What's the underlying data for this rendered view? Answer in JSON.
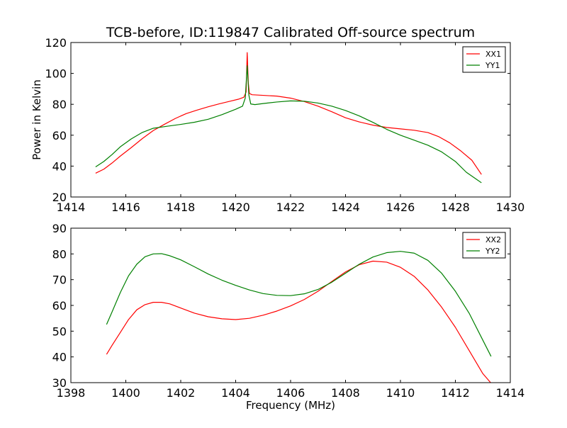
{
  "figure": {
    "title": "TCB-before, ID:119847 Calibrated Off-source spectrum"
  },
  "chart_data": [
    {
      "type": "line",
      "title": "TCB-before, ID:119847 Calibrated Off-source spectrum",
      "xlabel": "",
      "ylabel": "Power in Kelvin",
      "xlim": [
        1414,
        1430
      ],
      "ylim": [
        20,
        120
      ],
      "xticks": [
        1414,
        1416,
        1418,
        1420,
        1422,
        1424,
        1426,
        1428,
        1430
      ],
      "yticks": [
        20,
        40,
        60,
        80,
        100,
        120
      ],
      "grid": false,
      "legend": "top-right",
      "series": [
        {
          "name": "XX1",
          "color": "#ff0000",
          "points": [
            [
              1414.9,
              35.4
            ],
            [
              1415.2,
              38.0
            ],
            [
              1415.5,
              42.0
            ],
            [
              1415.8,
              46.5
            ],
            [
              1416.2,
              52.0
            ],
            [
              1416.6,
              57.8
            ],
            [
              1417.0,
              63.0
            ],
            [
              1417.4,
              67.0
            ],
            [
              1417.8,
              70.8
            ],
            [
              1418.2,
              74.0
            ],
            [
              1418.6,
              76.3
            ],
            [
              1419.0,
              78.4
            ],
            [
              1419.4,
              80.3
            ],
            [
              1419.8,
              82.0
            ],
            [
              1420.1,
              83.3
            ],
            [
              1420.3,
              84.6
            ],
            [
              1420.38,
              88.0
            ],
            [
              1420.42,
              113.5
            ],
            [
              1420.46,
              94.0
            ],
            [
              1420.5,
              87.0
            ],
            [
              1420.6,
              86.2
            ],
            [
              1421.0,
              85.8
            ],
            [
              1421.5,
              85.3
            ],
            [
              1422.0,
              84.0
            ],
            [
              1422.5,
              81.8
            ],
            [
              1423.0,
              78.8
            ],
            [
              1423.5,
              75.2
            ],
            [
              1424.0,
              71.3
            ],
            [
              1424.5,
              68.6
            ],
            [
              1425.0,
              66.5
            ],
            [
              1425.5,
              65.0
            ],
            [
              1426.0,
              64.1
            ],
            [
              1426.5,
              63.2
            ],
            [
              1427.0,
              61.7
            ],
            [
              1427.4,
              59.0
            ],
            [
              1427.8,
              55.0
            ],
            [
              1428.2,
              49.8
            ],
            [
              1428.6,
              43.8
            ],
            [
              1428.95,
              34.6
            ]
          ]
        },
        {
          "name": "YY1",
          "color": "#008000",
          "points": [
            [
              1414.9,
              39.5
            ],
            [
              1415.2,
              43.0
            ],
            [
              1415.5,
              47.5
            ],
            [
              1415.8,
              52.5
            ],
            [
              1416.2,
              57.6
            ],
            [
              1416.6,
              61.8
            ],
            [
              1417.0,
              64.5
            ],
            [
              1417.5,
              65.8
            ],
            [
              1418.0,
              67.0
            ],
            [
              1418.5,
              68.4
            ],
            [
              1419.0,
              70.3
            ],
            [
              1419.5,
              73.3
            ],
            [
              1420.0,
              76.8
            ],
            [
              1420.25,
              78.8
            ],
            [
              1420.35,
              84.0
            ],
            [
              1420.42,
              105.0
            ],
            [
              1420.48,
              86.0
            ],
            [
              1420.55,
              80.2
            ],
            [
              1420.7,
              79.8
            ],
            [
              1421.0,
              80.5
            ],
            [
              1421.5,
              81.5
            ],
            [
              1422.0,
              82.2
            ],
            [
              1422.5,
              82.0
            ],
            [
              1423.0,
              80.8
            ],
            [
              1423.5,
              78.8
            ],
            [
              1424.0,
              76.0
            ],
            [
              1424.5,
              72.5
            ],
            [
              1425.0,
              68.3
            ],
            [
              1425.5,
              63.8
            ],
            [
              1426.0,
              60.0
            ],
            [
              1426.5,
              56.8
            ],
            [
              1427.0,
              53.5
            ],
            [
              1427.5,
              49.2
            ],
            [
              1428.0,
              43.0
            ],
            [
              1428.4,
              36.0
            ],
            [
              1428.95,
              29.2
            ]
          ]
        }
      ]
    },
    {
      "type": "line",
      "title": "",
      "xlabel": "Frequency (MHz)",
      "ylabel": "",
      "xlim": [
        1398,
        1414
      ],
      "ylim": [
        30,
        90
      ],
      "xticks": [
        1398,
        1400,
        1402,
        1404,
        1406,
        1408,
        1410,
        1412,
        1414
      ],
      "yticks": [
        30,
        40,
        50,
        60,
        70,
        80,
        90
      ],
      "grid": false,
      "legend": "top-right",
      "series": [
        {
          "name": "XX2",
          "color": "#ff0000",
          "points": [
            [
              1399.3,
              41.0
            ],
            [
              1399.5,
              44.5
            ],
            [
              1399.8,
              49.5
            ],
            [
              1400.1,
              54.5
            ],
            [
              1400.4,
              58.3
            ],
            [
              1400.7,
              60.3
            ],
            [
              1401.0,
              61.2
            ],
            [
              1401.3,
              61.2
            ],
            [
              1401.6,
              60.6
            ],
            [
              1402.0,
              59.0
            ],
            [
              1402.5,
              57.0
            ],
            [
              1403.0,
              55.6
            ],
            [
              1403.5,
              54.8
            ],
            [
              1404.0,
              54.5
            ],
            [
              1404.5,
              55.0
            ],
            [
              1405.0,
              56.2
            ],
            [
              1405.5,
              57.8
            ],
            [
              1406.0,
              59.8
            ],
            [
              1406.5,
              62.3
            ],
            [
              1407.0,
              65.5
            ],
            [
              1407.5,
              69.3
            ],
            [
              1408.0,
              73.0
            ],
            [
              1408.5,
              75.8
            ],
            [
              1409.0,
              77.2
            ],
            [
              1409.5,
              76.8
            ],
            [
              1410.0,
              74.8
            ],
            [
              1410.5,
              71.3
            ],
            [
              1411.0,
              66.0
            ],
            [
              1411.5,
              59.3
            ],
            [
              1412.0,
              51.5
            ],
            [
              1412.5,
              42.5
            ],
            [
              1413.0,
              33.5
            ],
            [
              1413.3,
              29.8
            ]
          ]
        },
        {
          "name": "YY2",
          "color": "#008000",
          "points": [
            [
              1399.3,
              52.6
            ],
            [
              1399.5,
              57.5
            ],
            [
              1399.8,
              65.0
            ],
            [
              1400.1,
              71.5
            ],
            [
              1400.4,
              76.0
            ],
            [
              1400.7,
              78.9
            ],
            [
              1401.0,
              80.0
            ],
            [
              1401.3,
              80.1
            ],
            [
              1401.6,
              79.3
            ],
            [
              1402.0,
              77.7
            ],
            [
              1402.5,
              75.0
            ],
            [
              1403.0,
              72.2
            ],
            [
              1403.5,
              69.8
            ],
            [
              1404.0,
              67.8
            ],
            [
              1404.5,
              66.0
            ],
            [
              1405.0,
              64.6
            ],
            [
              1405.5,
              63.9
            ],
            [
              1406.0,
              63.8
            ],
            [
              1406.5,
              64.5
            ],
            [
              1407.0,
              66.2
            ],
            [
              1407.5,
              69.0
            ],
            [
              1408.0,
              72.5
            ],
            [
              1408.5,
              76.0
            ],
            [
              1409.0,
              78.8
            ],
            [
              1409.5,
              80.5
            ],
            [
              1410.0,
              81.0
            ],
            [
              1410.5,
              80.3
            ],
            [
              1411.0,
              77.5
            ],
            [
              1411.5,
              72.5
            ],
            [
              1412.0,
              65.5
            ],
            [
              1412.5,
              57.0
            ],
            [
              1413.0,
              46.5
            ],
            [
              1413.3,
              40.2
            ]
          ]
        }
      ]
    }
  ]
}
